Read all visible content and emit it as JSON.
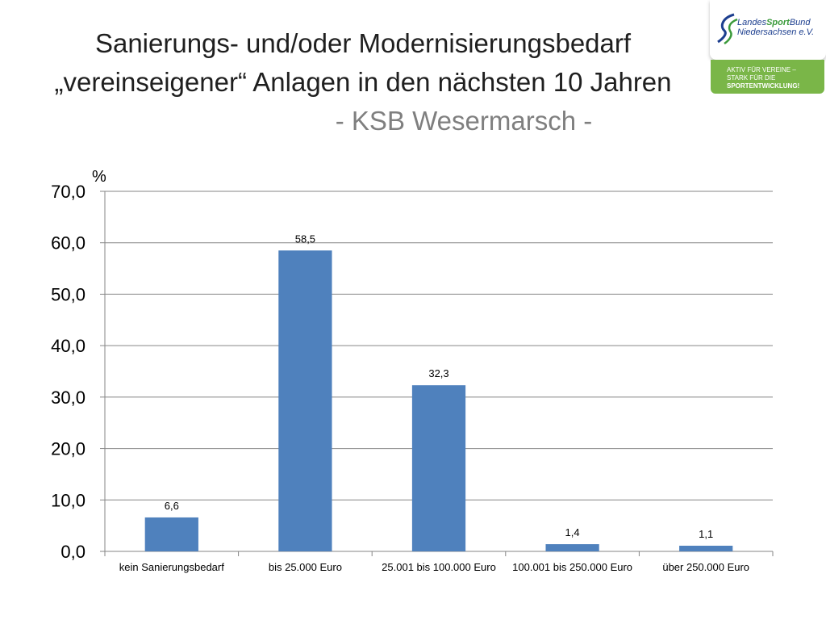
{
  "title": {
    "line1": "Sanierungs- und/oder Modernisierungsbedarf",
    "line2": "„vereinseigener“ Anlagen in den nächsten 10 Jahren",
    "line3": "- KSB Wesermarsch -"
  },
  "logo": {
    "name_part1": "Landes",
    "name_part2": "Sport",
    "name_part3": "Bund",
    "name_line2": "Niedersachsen e.V.",
    "slogan1": "AKTIV FÜR VEREINE –",
    "slogan2": "STARK FÜR DIE",
    "slogan3": "SPORTENTWICKLUNG!"
  },
  "chart_data": {
    "type": "bar",
    "ylabel": "%",
    "ylim": [
      0,
      70
    ],
    "yticks": [
      "0,0",
      "10,0",
      "20,0",
      "30,0",
      "40,0",
      "50,0",
      "60,0",
      "70,0"
    ],
    "grid": true,
    "categories": [
      "kein Sanierungsbedarf",
      "bis 25.000 Euro",
      "25.001 bis 100.000 Euro",
      "100.001 bis 250.000 Euro",
      "über 250.000 Euro"
    ],
    "values": [
      6.6,
      58.5,
      32.3,
      1.4,
      1.1
    ],
    "value_labels": [
      "6,6",
      "58,5",
      "32,3",
      "1,4",
      "1,1"
    ],
    "bar_color": "#4f81bd"
  }
}
